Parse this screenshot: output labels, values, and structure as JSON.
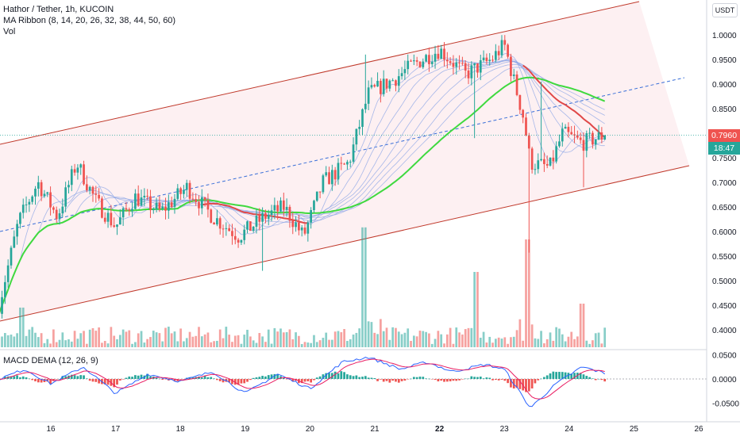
{
  "header": {
    "symbol_line": "Hathor / Tether, 1h, KUCOIN",
    "ma_line": "MA Ribbon (8, 14, 20, 26, 32, 38, 44, 50, 60)",
    "vol_line": "Vol",
    "macd_line": "MACD DEMA (12, 26, 9)",
    "currency_button": "USDT"
  },
  "price_tags": {
    "last_price": "0.7960",
    "countdown": "18:47"
  },
  "colors": {
    "up": "#26a69a",
    "down": "#ef5350",
    "channel": "#c0392b",
    "channel_fill": "#fdf0f2",
    "midline": "#3a6fd8",
    "ma_fast": "#3fd93f",
    "ma_slow": "#e04848",
    "ribbon": "#8aa4e6",
    "macd_line": "#2962ff",
    "signal_line": "#e91e63"
  },
  "chart_data": [
    {
      "type": "candlestick",
      "title": "Hathor / Tether, 1h, KUCOIN",
      "x_ticks": [
        "16",
        "17",
        "18",
        "19",
        "20",
        "21",
        "22",
        "23",
        "24",
        "25",
        "26"
      ],
      "y_ticks": [
        "1.0000",
        "0.9500",
        "0.9000",
        "0.8500",
        "0.8000",
        "0.7500",
        "0.7000",
        "0.6500",
        "0.6000",
        "0.5500",
        "0.5000",
        "0.4500",
        "0.4000"
      ],
      "ylim": [
        0.37,
        1.06
      ],
      "grid": false,
      "overlays": [
        "ascending channel (upper, mid, lower)",
        "MA Ribbon (8, 14, 20, 26, 32, 38, 44, 50, 60)"
      ],
      "last_price": 0.796,
      "close_path": [
        {
          "day": 15.2,
          "price": 0.45
        },
        {
          "day": 15.5,
          "price": 0.62
        },
        {
          "day": 15.8,
          "price": 0.7
        },
        {
          "day": 16.1,
          "price": 0.63
        },
        {
          "day": 16.4,
          "price": 0.74
        },
        {
          "day": 16.7,
          "price": 0.66
        },
        {
          "day": 17.0,
          "price": 0.61
        },
        {
          "day": 17.3,
          "price": 0.67
        },
        {
          "day": 17.7,
          "price": 0.64
        },
        {
          "day": 18.1,
          "price": 0.69
        },
        {
          "day": 18.5,
          "price": 0.63
        },
        {
          "day": 18.9,
          "price": 0.59
        },
        {
          "day": 19.3,
          "price": 0.63
        },
        {
          "day": 19.6,
          "price": 0.65
        },
        {
          "day": 19.9,
          "price": 0.59
        },
        {
          "day": 20.2,
          "price": 0.7
        },
        {
          "day": 20.6,
          "price": 0.74
        },
        {
          "day": 20.9,
          "price": 0.88
        },
        {
          "day": 21.3,
          "price": 0.91
        },
        {
          "day": 21.6,
          "price": 0.94
        },
        {
          "day": 22.0,
          "price": 0.97
        },
        {
          "day": 22.4,
          "price": 0.92
        },
        {
          "day": 22.8,
          "price": 0.95
        },
        {
          "day": 23.0,
          "price": 0.98
        },
        {
          "day": 23.3,
          "price": 0.83
        },
        {
          "day": 23.4,
          "price": 0.74
        },
        {
          "day": 23.7,
          "price": 0.73
        },
        {
          "day": 23.9,
          "price": 0.8
        },
        {
          "day": 24.2,
          "price": 0.78
        },
        {
          "day": 24.55,
          "price": 0.796
        }
      ]
    },
    {
      "type": "bar",
      "title": "Vol",
      "note": "volume bars, unlabeled scale"
    },
    {
      "type": "line",
      "title": "MACD DEMA (12, 26, 9)",
      "y_ticks": [
        "0.0500",
        "0.0000",
        "-0.0500"
      ],
      "ylim": [
        -0.075,
        0.06
      ],
      "series": [
        {
          "name": "MACD",
          "points": [
            {
              "day": 15.2,
              "v": 0.0
            },
            {
              "day": 15.6,
              "v": 0.02
            },
            {
              "day": 16.0,
              "v": -0.01
            },
            {
              "day": 16.5,
              "v": 0.025
            },
            {
              "day": 17.0,
              "v": -0.03
            },
            {
              "day": 17.5,
              "v": 0.01
            },
            {
              "day": 18.0,
              "v": -0.005
            },
            {
              "day": 18.5,
              "v": 0.015
            },
            {
              "day": 19.0,
              "v": -0.03
            },
            {
              "day": 19.5,
              "v": 0.01
            },
            {
              "day": 20.0,
              "v": -0.02
            },
            {
              "day": 20.5,
              "v": 0.035
            },
            {
              "day": 20.9,
              "v": 0.045
            },
            {
              "day": 21.4,
              "v": 0.02
            },
            {
              "day": 21.8,
              "v": 0.035
            },
            {
              "day": 22.2,
              "v": 0.015
            },
            {
              "day": 22.7,
              "v": 0.03
            },
            {
              "day": 23.0,
              "v": 0.02
            },
            {
              "day": 23.4,
              "v": -0.06
            },
            {
              "day": 23.8,
              "v": -0.01
            },
            {
              "day": 24.2,
              "v": 0.025
            },
            {
              "day": 24.55,
              "v": 0.012
            }
          ]
        }
      ]
    }
  ]
}
